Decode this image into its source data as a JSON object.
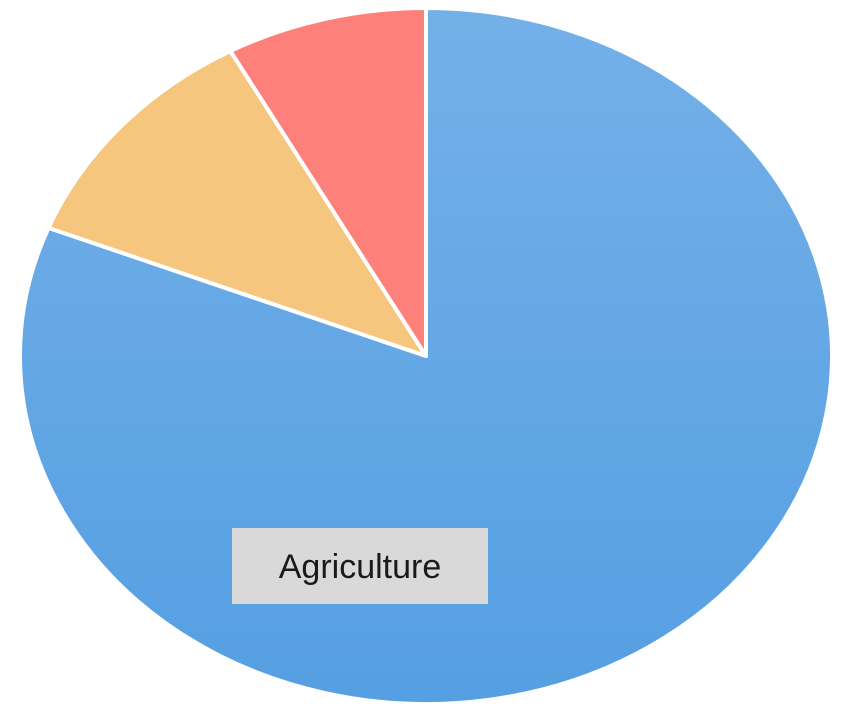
{
  "chart_data": {
    "type": "pie",
    "title": "",
    "start_angle_deg": 0,
    "direction": "clockwise",
    "legend": "none",
    "slices": [
      {
        "label": "Agriculture",
        "value": 81,
        "color": "#5ea3e4",
        "labeled": true
      },
      {
        "label": "",
        "value": 11,
        "color": "#f6c57e",
        "labeled": false
      },
      {
        "label": "",
        "value": 8,
        "color": "#fd807a",
        "labeled": false
      }
    ]
  }
}
